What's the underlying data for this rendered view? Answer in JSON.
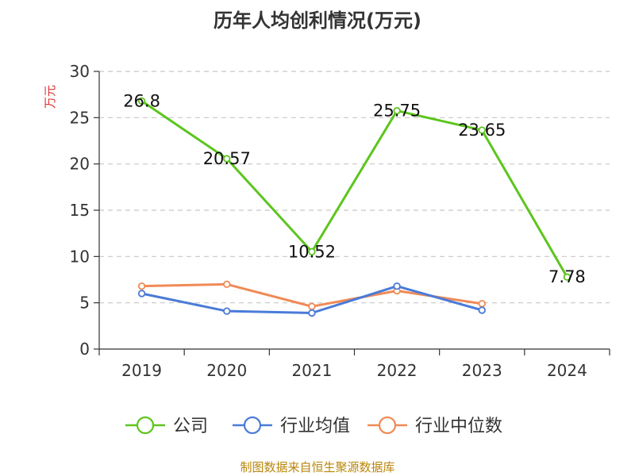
{
  "title": "历年人均创利情况(万元)",
  "source": "制图数据来自恒生聚源数据库",
  "colors": {
    "company": "#5cc51e",
    "industry_avg": "#4a7bd8",
    "industry_median": "#f08a55"
  },
  "chart_data": {
    "type": "line",
    "title": "历年人均创利情况(万元)",
    "ylabel": "万元",
    "xlabel": "",
    "categories": [
      "2019",
      "2020",
      "2021",
      "2022",
      "2023",
      "2024"
    ],
    "ylim": [
      0,
      30
    ],
    "yticks": [
      0,
      5,
      10,
      15,
      20,
      25,
      30
    ],
    "grid": true,
    "legend": "bottom",
    "series": [
      {
        "name": "公司",
        "values": [
          26.8,
          20.57,
          10.52,
          25.75,
          23.65,
          7.78
        ],
        "labels": [
          "26.8",
          "20.57",
          "10.52",
          "25.75",
          "23.65",
          "7.78"
        ]
      },
      {
        "name": "行业均值",
        "values": [
          6.0,
          4.1,
          3.9,
          6.8,
          4.2,
          null
        ]
      },
      {
        "name": "行业中位数",
        "values": [
          6.8,
          7.0,
          4.6,
          6.3,
          4.9,
          null
        ]
      }
    ]
  }
}
